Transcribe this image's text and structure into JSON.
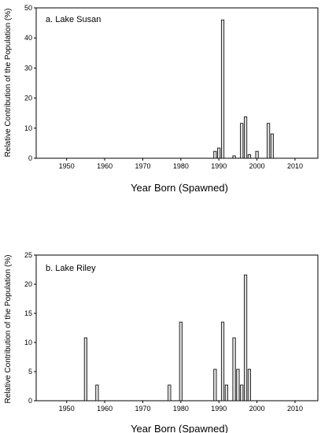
{
  "chart_data": [
    {
      "type": "bar",
      "title": "a. Lake Susan",
      "xlabel": "Year Born (Spawned)",
      "ylabel": "Relative Contribution of the Population (%)",
      "xlim": [
        1942,
        2016
      ],
      "ylim": [
        0,
        50
      ],
      "xticks": [
        1950,
        1960,
        1970,
        1980,
        1990,
        2000,
        2010
      ],
      "yticks": [
        0,
        10,
        20,
        30,
        40,
        50
      ],
      "grid": false,
      "x": [
        1989,
        1990,
        1991,
        1994,
        1996,
        1997,
        1998,
        2000,
        2003,
        2004
      ],
      "values": [
        2.3,
        3.4,
        46.0,
        0.8,
        11.6,
        13.8,
        1.2,
        2.3,
        11.6,
        8.1
      ]
    },
    {
      "type": "bar",
      "title": "b. Lake Riley",
      "xlabel": "Year Born (Spawned)",
      "ylabel": "Relative Contribution of the Population (%)",
      "xlim": [
        1942,
        2016
      ],
      "ylim": [
        0,
        25
      ],
      "xticks": [
        1950,
        1960,
        1970,
        1980,
        1990,
        2000,
        2010
      ],
      "yticks": [
        0,
        5,
        10,
        15,
        20,
        25
      ],
      "grid": false,
      "x": [
        1955,
        1958,
        1977,
        1980,
        1989,
        1991,
        1992,
        1994,
        1995,
        1996,
        1997,
        1998
      ],
      "values": [
        10.8,
        2.7,
        2.7,
        13.5,
        5.4,
        13.5,
        2.7,
        10.8,
        5.4,
        2.7,
        21.6,
        5.4
      ]
    }
  ]
}
